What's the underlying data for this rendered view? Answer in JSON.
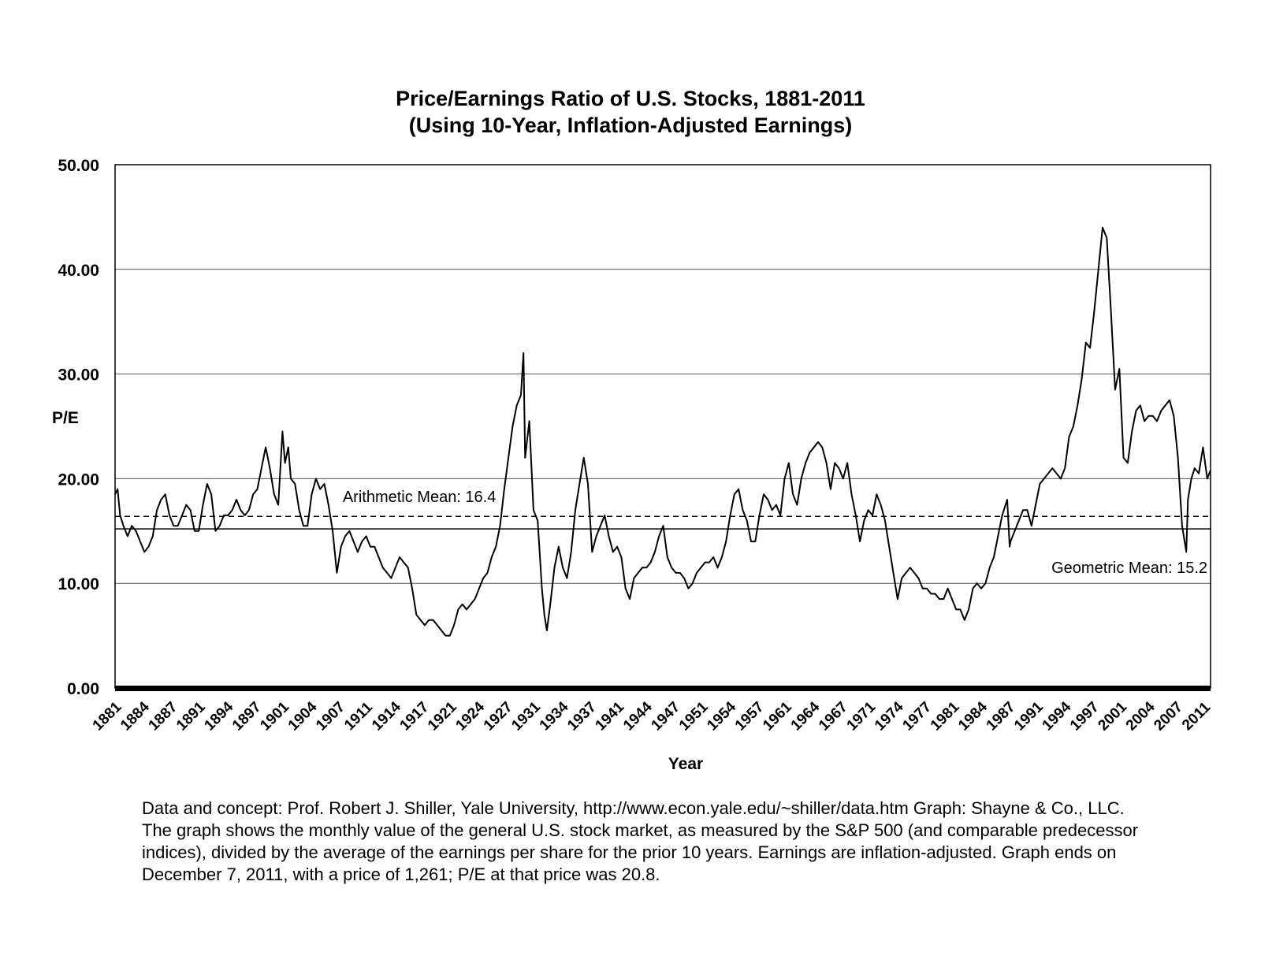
{
  "chart_data": {
    "type": "line",
    "title": "Price/Earnings Ratio of U.S. Stocks, 1881-2011",
    "subtitle": "(Using 10-Year, Inflation-Adjusted Earnings)",
    "xlabel": "Year",
    "ylabel": "P/E",
    "xlim": [
      1881,
      2011.9
    ],
    "ylim": [
      0,
      50
    ],
    "y_ticks": [
      "0.00",
      "10.00",
      "20.00",
      "30.00",
      "40.00",
      "50.00"
    ],
    "x_ticks": [
      "1881",
      "1884",
      "1887",
      "1891",
      "1894",
      "1897",
      "1901",
      "1904",
      "1907",
      "1911",
      "1914",
      "1917",
      "1921",
      "1924",
      "1927",
      "1931",
      "1934",
      "1937",
      "1941",
      "1944",
      "1947",
      "1951",
      "1954",
      "1957",
      "1961",
      "1964",
      "1967",
      "1971",
      "1974",
      "1977",
      "1981",
      "1984",
      "1987",
      "1991",
      "1994",
      "1997",
      "2001",
      "2004",
      "2007",
      "2011"
    ],
    "grid": true,
    "reference_lines": [
      {
        "name": "Arithmetic Mean",
        "label": "Arithmetic Mean: 16.4",
        "value": 16.4,
        "style": "dashed"
      },
      {
        "name": "Geometric Mean",
        "label": "Geometric Mean: 15.2",
        "value": 15.2,
        "style": "solid"
      }
    ],
    "series": [
      {
        "name": "P/E (10-year, inflation-adjusted earnings)",
        "x": [
          1881.0,
          1881.3,
          1881.6,
          1882.0,
          1882.5,
          1883.0,
          1883.5,
          1884.0,
          1884.5,
          1885.0,
          1885.5,
          1886.0,
          1886.5,
          1887.0,
          1887.5,
          1888.0,
          1888.5,
          1889.0,
          1889.5,
          1890.0,
          1890.5,
          1891.0,
          1891.5,
          1892.0,
          1892.5,
          1893.0,
          1893.5,
          1894.0,
          1894.5,
          1895.0,
          1895.5,
          1896.0,
          1896.5,
          1897.0,
          1897.5,
          1898.0,
          1898.5,
          1899.0,
          1899.5,
          1900.0,
          1900.5,
          1901.0,
          1901.3,
          1901.7,
          1902.0,
          1902.5,
          1903.0,
          1903.5,
          1904.0,
          1904.5,
          1905.0,
          1905.5,
          1906.0,
          1906.5,
          1907.0,
          1907.5,
          1908.0,
          1908.5,
          1909.0,
          1909.5,
          1910.0,
          1910.5,
          1911.0,
          1911.5,
          1912.0,
          1912.5,
          1913.0,
          1913.5,
          1914.0,
          1914.5,
          1915.0,
          1915.5,
          1916.0,
          1916.5,
          1917.0,
          1917.5,
          1918.0,
          1918.5,
          1919.0,
          1919.5,
          1920.0,
          1920.5,
          1921.0,
          1921.5,
          1922.0,
          1922.5,
          1923.0,
          1923.5,
          1924.0,
          1924.5,
          1925.0,
          1925.5,
          1926.0,
          1926.5,
          1927.0,
          1927.5,
          1928.0,
          1928.5,
          1929.0,
          1929.5,
          1929.8,
          1930.0,
          1930.5,
          1931.0,
          1931.5,
          1932.0,
          1932.3,
          1932.6,
          1933.0,
          1933.5,
          1934.0,
          1934.5,
          1935.0,
          1935.5,
          1936.0,
          1936.5,
          1937.0,
          1937.5,
          1938.0,
          1938.5,
          1939.0,
          1939.5,
          1940.0,
          1940.5,
          1941.0,
          1941.5,
          1942.0,
          1942.5,
          1943.0,
          1943.5,
          1944.0,
          1944.5,
          1945.0,
          1945.5,
          1946.0,
          1946.5,
          1947.0,
          1947.5,
          1948.0,
          1948.5,
          1949.0,
          1949.5,
          1950.0,
          1950.5,
          1951.0,
          1951.5,
          1952.0,
          1952.5,
          1953.0,
          1953.5,
          1954.0,
          1954.5,
          1955.0,
          1955.5,
          1956.0,
          1956.5,
          1957.0,
          1957.5,
          1958.0,
          1958.5,
          1959.0,
          1959.5,
          1960.0,
          1960.5,
          1961.0,
          1961.5,
          1962.0,
          1962.5,
          1963.0,
          1963.5,
          1964.0,
          1964.5,
          1965.0,
          1965.5,
          1966.0,
          1966.5,
          1967.0,
          1967.5,
          1968.0,
          1968.5,
          1969.0,
          1969.5,
          1970.0,
          1970.5,
          1971.0,
          1971.5,
          1972.0,
          1972.5,
          1973.0,
          1973.5,
          1974.0,
          1974.5,
          1975.0,
          1975.5,
          1976.0,
          1976.5,
          1977.0,
          1977.5,
          1978.0,
          1978.5,
          1979.0,
          1979.5,
          1980.0,
          1980.5,
          1981.0,
          1981.5,
          1982.0,
          1982.5,
          1983.0,
          1983.5,
          1984.0,
          1984.5,
          1985.0,
          1985.5,
          1986.0,
          1986.5,
          1987.0,
          1987.6,
          1987.9,
          1988.0,
          1988.5,
          1989.0,
          1989.5,
          1990.0,
          1990.5,
          1991.0,
          1991.5,
          1992.0,
          1992.5,
          1993.0,
          1993.5,
          1994.0,
          1994.5,
          1995.0,
          1995.5,
          1996.0,
          1996.5,
          1997.0,
          1997.5,
          1998.0,
          1998.5,
          1999.0,
          1999.5,
          2000.0,
          2000.5,
          2001.0,
          2001.5,
          2002.0,
          2002.5,
          2003.0,
          2003.5,
          2004.0,
          2004.5,
          2005.0,
          2005.5,
          2006.0,
          2006.5,
          2007.0,
          2007.5,
          2008.0,
          2008.5,
          2009.0,
          2009.2,
          2009.6,
          2010.0,
          2010.5,
          2011.0,
          2011.5,
          2011.9
        ],
        "y": [
          18.5,
          19.0,
          16.5,
          15.5,
          14.5,
          15.5,
          15.0,
          14.0,
          13.0,
          13.5,
          14.5,
          17.0,
          18.0,
          18.5,
          16.5,
          15.5,
          15.5,
          16.5,
          17.5,
          17.0,
          15.0,
          15.0,
          17.5,
          19.5,
          18.5,
          15.0,
          15.5,
          16.5,
          16.5,
          17.0,
          18.0,
          17.0,
          16.5,
          17.0,
          18.5,
          19.0,
          21.0,
          23.0,
          21.0,
          18.5,
          17.5,
          24.5,
          21.5,
          23.0,
          20.0,
          19.5,
          17.0,
          15.5,
          15.5,
          18.5,
          20.0,
          19.0,
          19.5,
          17.5,
          15.0,
          11.0,
          13.5,
          14.5,
          15.0,
          14.0,
          13.0,
          14.0,
          14.5,
          13.5,
          13.5,
          12.5,
          11.5,
          11.0,
          10.5,
          11.5,
          12.5,
          12.0,
          11.5,
          9.5,
          7.0,
          6.5,
          6.0,
          6.5,
          6.5,
          6.0,
          5.5,
          5.0,
          5.0,
          6.0,
          7.5,
          8.0,
          7.5,
          8.0,
          8.5,
          9.5,
          10.5,
          11.0,
          12.5,
          13.5,
          15.5,
          19.0,
          22.0,
          25.0,
          27.0,
          28.0,
          32.0,
          22.0,
          25.5,
          17.0,
          16.0,
          9.5,
          7.0,
          5.5,
          8.0,
          11.5,
          13.5,
          11.5,
          10.5,
          13.0,
          17.0,
          19.5,
          22.0,
          19.5,
          13.0,
          14.5,
          15.5,
          16.5,
          14.5,
          13.0,
          13.5,
          12.5,
          9.5,
          8.5,
          10.5,
          11.0,
          11.5,
          11.5,
          12.0,
          13.0,
          14.5,
          15.5,
          12.5,
          11.5,
          11.0,
          11.0,
          10.5,
          9.5,
          10.0,
          11.0,
          11.5,
          12.0,
          12.0,
          12.5,
          11.5,
          12.5,
          14.0,
          16.5,
          18.5,
          19.0,
          17.0,
          16.0,
          14.0,
          14.0,
          16.5,
          18.5,
          18.0,
          17.0,
          17.5,
          16.5,
          20.0,
          21.5,
          18.5,
          17.5,
          20.0,
          21.5,
          22.5,
          23.0,
          23.5,
          23.0,
          21.5,
          19.0,
          21.5,
          21.0,
          20.0,
          21.5,
          18.5,
          16.5,
          14.0,
          16.0,
          17.0,
          16.5,
          18.5,
          17.5,
          16.0,
          13.5,
          11.0,
          8.5,
          10.5,
          11.0,
          11.5,
          11.0,
          10.5,
          9.5,
          9.5,
          9.0,
          9.0,
          8.5,
          8.5,
          9.5,
          8.5,
          7.5,
          7.5,
          6.5,
          7.5,
          9.5,
          10.0,
          9.5,
          10.0,
          11.5,
          12.5,
          14.5,
          16.5,
          18.0,
          13.5,
          14.0,
          15.0,
          16.0,
          17.0,
          17.0,
          15.5,
          17.5,
          19.5,
          20.0,
          20.5,
          21.0,
          20.5,
          20.0,
          21.0,
          24.0,
          25.0,
          27.0,
          29.5,
          33.0,
          32.5,
          36.0,
          40.0,
          44.0,
          43.0,
          36.0,
          28.5,
          30.5,
          22.0,
          21.5,
          24.5,
          26.5,
          27.0,
          25.5,
          26.0,
          26.0,
          25.5,
          26.5,
          27.0,
          27.5,
          26.0,
          22.0,
          15.5,
          13.0,
          18.0,
          20.0,
          21.0,
          20.5,
          23.0,
          20.0,
          20.8
        ]
      }
    ]
  },
  "footnote": {
    "lines": [
      "Data and concept:  Prof. Robert J. Shiller, Yale University, http://www.econ.yale.edu/~shiller/data.htm  Graph:  Shayne & Co., LLC.",
      "The graph shows the monthly value of the general U.S. stock market, as measured by the S&P 500 (and comparable predecessor",
      "indices), divided by the average of the earnings per share for the prior 10 years.  Earnings are inflation-adjusted.  Graph ends on",
      "December 7, 2011, with a price of 1,261; P/E at that price was 20.8."
    ]
  }
}
